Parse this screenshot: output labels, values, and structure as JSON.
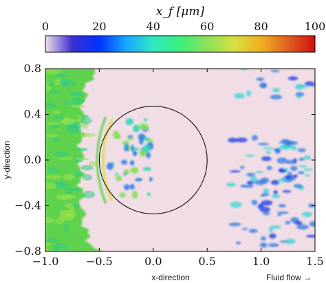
{
  "chart_data": {
    "type": "heatmap",
    "colorbar": {
      "title": "x_f [μm]",
      "range": [
        0,
        100
      ],
      "ticks": [
        "0",
        "20",
        "40",
        "60",
        "80",
        "100"
      ],
      "colors": [
        "#f0ddea",
        "#3b2fd0",
        "#0033ff",
        "#1aa7ff",
        "#30e8c0",
        "#3cf07a",
        "#8ee05a",
        "#d6e040",
        "#f0b020",
        "#e06020",
        "#d01010"
      ]
    },
    "xlabel": "x-direction",
    "ylabel": "y-direction",
    "flow_label": "Fluid flow →",
    "xlim": [
      -1.0,
      1.5
    ],
    "ylim": [
      -0.8,
      0.8
    ],
    "xticks": [
      {
        "value": -1.0,
        "label": "−1.0"
      },
      {
        "value": -0.5,
        "label": "−0.5"
      },
      {
        "value": 0.0,
        "label": "0.0"
      },
      {
        "value": 0.5,
        "label": "0.5"
      },
      {
        "value": 1.0,
        "label": "1.0"
      },
      {
        "value": 1.5,
        "label": "1.5"
      }
    ],
    "yticks": [
      {
        "value": 0.8,
        "label": "0.8"
      },
      {
        "value": 0.4,
        "label": "0.4"
      },
      {
        "value": 0.0,
        "label": "0.0"
      },
      {
        "value": -0.4,
        "label": "−0.4"
      },
      {
        "value": -0.8,
        "label": "−0.8"
      }
    ],
    "circle": {
      "cx": 0.0,
      "cy": 0.0,
      "r": 0.5
    },
    "background_color": "#f1dde6",
    "upstream_color": "#5fd24e",
    "wake_color": "#2f7be0"
  }
}
